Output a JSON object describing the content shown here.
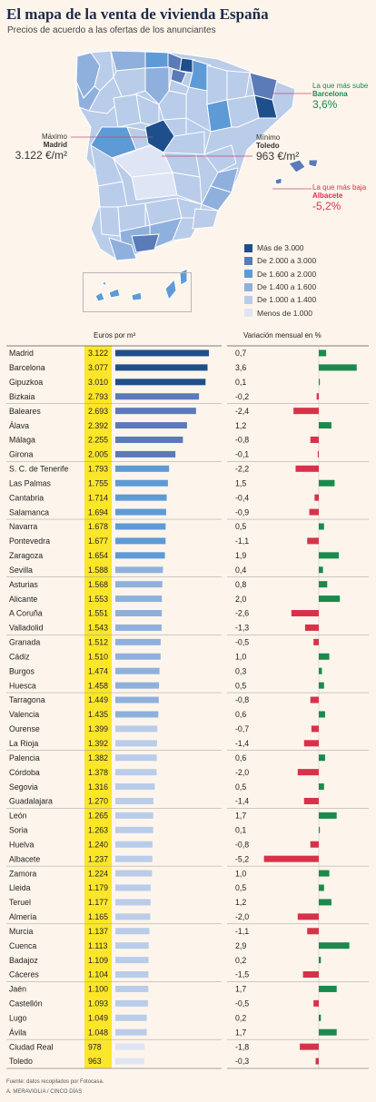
{
  "title": "El mapa de la venta de vivienda España",
  "subtitle": "Precios de acuerdo a las ofertas de los anunciantes",
  "annotations": {
    "max": {
      "label": "Máximo",
      "name": "Madrid",
      "value": "3.122 €/m²"
    },
    "min": {
      "label": "Mínimo",
      "name": "Toledo",
      "value": "963 €/m²"
    },
    "rise": {
      "label": "La que más sube",
      "name": "Barcelona",
      "value": "3,6%"
    },
    "fall": {
      "label": "La que más baja",
      "name": "Albacete",
      "value": "-5,2%"
    }
  },
  "legend": [
    {
      "label": "Más de 3.000",
      "color": "#1f4e8c"
    },
    {
      "label": "De 2.000 a 3.000",
      "color": "#5a7ab8"
    },
    {
      "label": "De 1.600 a 2.000",
      "color": "#5e9ad6"
    },
    {
      "label": "De 1.400 a 1.600",
      "color": "#8fb0dd"
    },
    {
      "label": "De 1.000 a 1.400",
      "color": "#b9cce9"
    },
    {
      "label": "Menos de 1.000",
      "color": "#dfe5f4"
    }
  ],
  "colors": {
    "highlight": "#fbe62a",
    "positive": "#1b8a4c",
    "negative": "#d8324a"
  },
  "headers": {
    "price": "Euros por m²",
    "change": "Variación mensual en %"
  },
  "footer": {
    "source": "Fuente: datos recopilados por Fotocasa.",
    "credit": "A. MERAVIGLIA / CINCO DÍAS"
  },
  "chart_data": {
    "type": "bar",
    "ylabel": "Euros por m²",
    "categories": [
      "Madrid",
      "Barcelona",
      "Gipuzkoa",
      "Bizkaia",
      "Baleares",
      "Álava",
      "Málaga",
      "Girona",
      "S. C. de Tenerife",
      "Las Palmas",
      "Cantabria",
      "Salamanca",
      "Navarra",
      "Pontevedra",
      "Zaragoza",
      "Sevilla",
      "Asturias",
      "Alicante",
      "A Coruña",
      "Valladolid",
      "Granada",
      "Cádiz",
      "Burgos",
      "Huesca",
      "Tarragona",
      "Valencia",
      "Ourense",
      "La Rioja",
      "Palencia",
      "Córdoba",
      "Segovia",
      "Guadalajara",
      "León",
      "Soria",
      "Huelva",
      "Albacete",
      "Zamora",
      "Lleida",
      "Teruel",
      "Almería",
      "Murcia",
      "Cuenca",
      "Badajoz",
      "Cáceres",
      "Jaén",
      "Castellón",
      "Lugo",
      "Ávila",
      "Ciudad Real",
      "Toledo"
    ],
    "series": [
      {
        "name": "Euros por m²",
        "values": [
          3122,
          3077,
          3010,
          2793,
          2693,
          2392,
          2255,
          2005,
          1793,
          1755,
          1714,
          1694,
          1678,
          1677,
          1654,
          1588,
          1568,
          1553,
          1551,
          1543,
          1512,
          1510,
          1474,
          1458,
          1449,
          1435,
          1399,
          1392,
          1382,
          1378,
          1316,
          1270,
          1265,
          1263,
          1240,
          1237,
          1224,
          1179,
          1177,
          1165,
          1137,
          1113,
          1109,
          1104,
          1100,
          1093,
          1049,
          1048,
          978,
          963
        ]
      },
      {
        "name": "Variación mensual en %",
        "values": [
          0.7,
          3.6,
          0.1,
          -0.2,
          -2.4,
          1.2,
          -0.8,
          -0.1,
          -2.2,
          1.5,
          -0.4,
          -0.9,
          0.5,
          -1.1,
          1.9,
          0.4,
          0.8,
          2.0,
          -2.6,
          -1.3,
          -0.5,
          1.0,
          0.3,
          0.5,
          -0.8,
          0.6,
          -0.7,
          -1.4,
          0.6,
          -2.0,
          0.5,
          -1.4,
          1.7,
          0.1,
          -0.8,
          -5.2,
          1.0,
          0.5,
          1.2,
          -2.0,
          -1.1,
          2.9,
          0.2,
          -1.5,
          1.7,
          -0.5,
          0.2,
          1.7,
          -1.8,
          -0.3
        ]
      }
    ],
    "price_labels": [
      "3.122",
      "3.077",
      "3.010",
      "2.793",
      "2.693",
      "2.392",
      "2.255",
      "2.005",
      "1.793",
      "1.755",
      "1.714",
      "1.694",
      "1.678",
      "1.677",
      "1.654",
      "1.588",
      "1.568",
      "1.553",
      "1.551",
      "1.543",
      "1.512",
      "1.510",
      "1.474",
      "1.458",
      "1.449",
      "1.435",
      "1.399",
      "1.392",
      "1.382",
      "1.378",
      "1.316",
      "1.270",
      "1.265",
      "1.263",
      "1.240",
      "1.237",
      "1.224",
      "1.179",
      "1.177",
      "1.165",
      "1.137",
      "1.113",
      "1.109",
      "1.104",
      "1.100",
      "1.093",
      "1.049",
      "1.048",
      "978",
      "963"
    ],
    "change_labels": [
      "0,7",
      "3,6",
      "0,1",
      "-0,2",
      "-2,4",
      "1,2",
      "-0,8",
      "-0,1",
      "-2,2",
      "1,5",
      "-0,4",
      "-0,9",
      "0,5",
      "-1,1",
      "1,9",
      "0,4",
      "0,8",
      "2,0",
      "-2,6",
      "-1,3",
      "-0,5",
      "1,0",
      "0,3",
      "0,5",
      "-0,8",
      "0,6",
      "-0,7",
      "-1,4",
      "0,6",
      "-2,0",
      "0,5",
      "-1,4",
      "1,7",
      "0,1",
      "-0,8",
      "-5,2",
      "1,0",
      "0,5",
      "1,2",
      "-2,0",
      "-1,1",
      "2,9",
      "0,2",
      "-1,5",
      "1,7",
      "-0,5",
      "0,2",
      "1,7",
      "-1,8",
      "-0,3"
    ]
  }
}
